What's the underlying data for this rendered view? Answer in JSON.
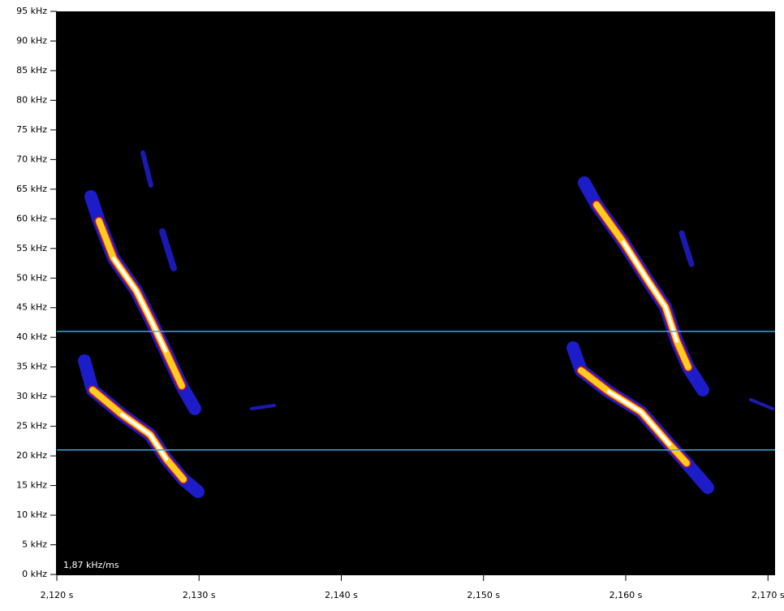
{
  "chart_data": {
    "type": "spectrogram",
    "annotation": "1,87 kHz/ms",
    "xlim": [
      2.12,
      2.1705
    ],
    "xticks": [
      {
        "value": 2.12,
        "label": "2,120 s"
      },
      {
        "value": 2.13,
        "label": "2,130 s"
      },
      {
        "value": 2.14,
        "label": "2,140 s"
      },
      {
        "value": 2.15,
        "label": "2,150 s"
      },
      {
        "value": 2.16,
        "label": "2,160 s"
      },
      {
        "value": 2.17,
        "label": "2,170 s"
      }
    ],
    "ylim": [
      0,
      95
    ],
    "yticks": [
      {
        "value": 0,
        "label": "0 kHz"
      },
      {
        "value": 5,
        "label": "5 kHz"
      },
      {
        "value": 10,
        "label": "10 kHz"
      },
      {
        "value": 15,
        "label": "15 kHz"
      },
      {
        "value": 20,
        "label": "20 kHz"
      },
      {
        "value": 25,
        "label": "25 kHz"
      },
      {
        "value": 30,
        "label": "30 kHz"
      },
      {
        "value": 35,
        "label": "35 kHz"
      },
      {
        "value": 40,
        "label": "40 kHz"
      },
      {
        "value": 45,
        "label": "45 kHz"
      },
      {
        "value": 50,
        "label": "50 kHz"
      },
      {
        "value": 55,
        "label": "55 kHz"
      },
      {
        "value": 60,
        "label": "60 kHz"
      },
      {
        "value": 65,
        "label": "65 kHz"
      },
      {
        "value": 70,
        "label": "70 kHz"
      },
      {
        "value": 75,
        "label": "75 kHz"
      },
      {
        "value": 80,
        "label": "80 kHz"
      },
      {
        "value": 85,
        "label": "85 kHz"
      },
      {
        "value": 90,
        "label": "90 kHz"
      },
      {
        "value": 95,
        "label": "95 kHz"
      }
    ],
    "reference_lines": [
      41,
      21
    ],
    "reference_color": "#3fa8d8"
  }
}
